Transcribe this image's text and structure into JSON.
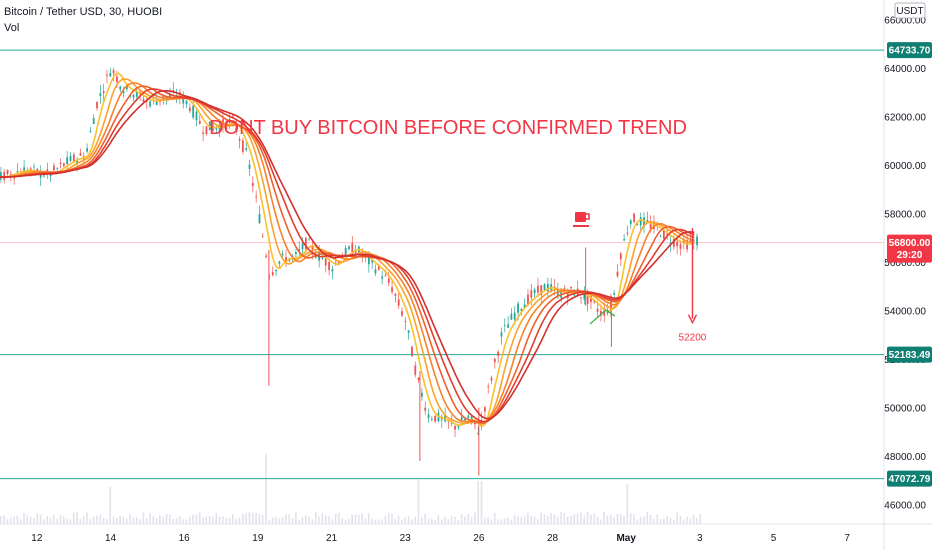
{
  "header": {
    "symbol": "Bitcoin / Tether USD, 30, HUOBI",
    "volume_label": "Vol"
  },
  "currency_badge": "USDT",
  "annotation": "DONT BUY BITCOIN BEFORE CONFIRMED TREND",
  "target_label": "52200",
  "current_price": {
    "value": "56800.00",
    "countdown": "29:20"
  },
  "colors": {
    "level_line": "#26a69a",
    "level_tag": "#0f7f73",
    "price_line": "#f23645",
    "candle_up": "#26a69a",
    "candle_down": "#ef5350",
    "annotation": "#f23645",
    "ribbon": [
      "#fbc02d",
      "#fba22d",
      "#f7812b",
      "#f0602c",
      "#e23d2e",
      "#d32f2f"
    ]
  },
  "chart_data": {
    "type": "candlestick",
    "x_ticks": [
      "12",
      "14",
      "16",
      "19",
      "21",
      "23",
      "26",
      "28",
      "May",
      "3",
      "5",
      "7"
    ],
    "x_tick_positions_days": [
      12,
      14,
      16,
      18,
      20,
      22,
      24,
      26,
      28,
      30,
      32,
      34
    ],
    "x_range_days": [
      11.0,
      35.0
    ],
    "y_ticks": [
      46000,
      48000,
      50000,
      52000,
      54000,
      56000,
      58000,
      60000,
      62000,
      64000,
      66000
    ],
    "y_range": [
      45200,
      66800
    ],
    "horizontal_levels": [
      {
        "value": 64733.7,
        "label": "64733.70"
      },
      {
        "value": 52183.49,
        "label": "52183.49"
      },
      {
        "value": 47072.79,
        "label": "47072.79"
      }
    ],
    "price_line": 56800,
    "price_path": [
      [
        11.0,
        59500
      ],
      [
        11.6,
        59800
      ],
      [
        12.3,
        59600
      ],
      [
        12.9,
        60200
      ],
      [
        13.3,
        60400
      ],
      [
        13.6,
        62500
      ],
      [
        14.0,
        64000
      ],
      [
        14.3,
        63200
      ],
      [
        14.7,
        62900
      ],
      [
        15.0,
        62600
      ],
      [
        15.3,
        62700
      ],
      [
        15.8,
        62900
      ],
      [
        16.1,
        62500
      ],
      [
        16.5,
        61500
      ],
      [
        16.9,
        61600
      ],
      [
        17.3,
        61800
      ],
      [
        17.7,
        60300
      ],
      [
        18.0,
        58000
      ],
      [
        18.3,
        55500
      ],
      [
        18.6,
        56100
      ],
      [
        19.0,
        56200
      ],
      [
        19.3,
        56800
      ],
      [
        19.6,
        56300
      ],
      [
        20.0,
        55800
      ],
      [
        20.3,
        56300
      ],
      [
        20.6,
        56600
      ],
      [
        21.0,
        56000
      ],
      [
        21.3,
        55600
      ],
      [
        21.6,
        55000
      ],
      [
        22.0,
        53500
      ],
      [
        22.3,
        51200
      ],
      [
        22.6,
        49700
      ],
      [
        23.0,
        49500
      ],
      [
        23.3,
        49200
      ],
      [
        23.7,
        49600
      ],
      [
        24.0,
        49000
      ],
      [
        24.2,
        50500
      ],
      [
        24.6,
        53000
      ],
      [
        25.0,
        54000
      ],
      [
        25.4,
        54600
      ],
      [
        25.8,
        55000
      ],
      [
        26.2,
        54700
      ],
      [
        26.6,
        54800
      ],
      [
        27.0,
        54400
      ],
      [
        27.3,
        53900
      ],
      [
        27.6,
        54200
      ],
      [
        27.8,
        56200
      ],
      [
        28.1,
        57800
      ],
      [
        28.5,
        57600
      ],
      [
        28.8,
        57400
      ],
      [
        29.1,
        57000
      ],
      [
        29.5,
        56700
      ],
      [
        29.9,
        56900
      ]
    ],
    "ribbon_lags_days": [
      0.3,
      0.6,
      0.9,
      1.2,
      1.5,
      1.8
    ],
    "wick_spikes": [
      {
        "day": 18.3,
        "high": 56500,
        "low": 50900
      },
      {
        "day": 22.4,
        "high": 51500,
        "low": 47800
      },
      {
        "day": 24.0,
        "high": 50000,
        "low": 47200
      },
      {
        "day": 27.6,
        "high": 54600,
        "low": 52500
      },
      {
        "day": 26.9,
        "high": 56600,
        "low": 54200
      }
    ],
    "projection": {
      "from_day": 29.8,
      "from_price": 57400,
      "to_day": 29.8,
      "to_price": 53500
    },
    "volume_bars": {
      "day_start": 11.0,
      "day_end": 30.0,
      "spikes": [
        {
          "day": 18.2,
          "height": 1.0
        },
        {
          "day": 22.3,
          "height": 0.6
        },
        {
          "day": 24.0,
          "height": 0.55
        },
        {
          "day": 14.0,
          "height": 0.45
        },
        {
          "day": 28.0,
          "height": 0.5
        }
      ]
    }
  }
}
